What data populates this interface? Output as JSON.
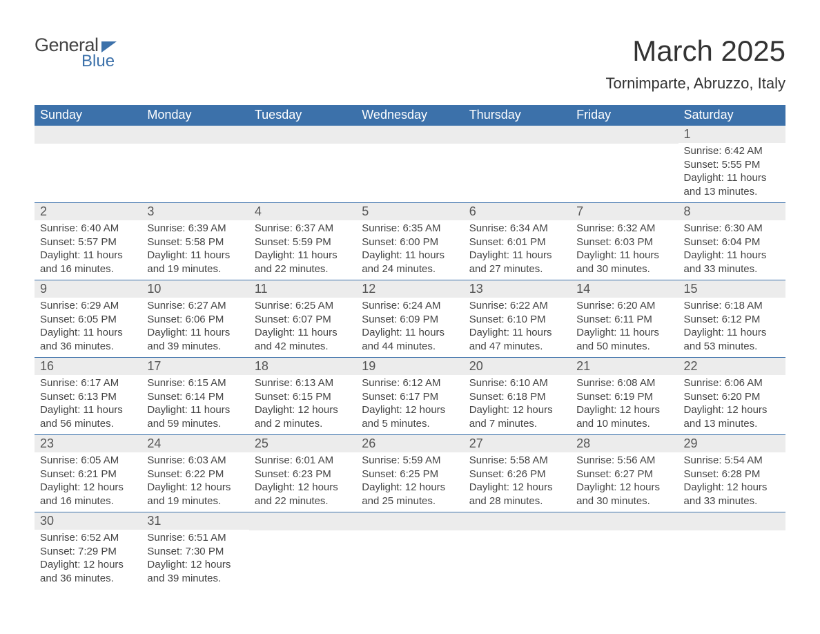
{
  "brand": {
    "word1": "General",
    "word2": "Blue"
  },
  "title": "March 2025",
  "location": "Tornimparte, Abruzzo, Italy",
  "colors": {
    "header_bg": "#3c71aa",
    "header_text": "#ffffff",
    "daynum_bg": "#ececec",
    "text": "#424242",
    "row_border": "#3c71aa"
  },
  "day_headers": [
    "Sunday",
    "Monday",
    "Tuesday",
    "Wednesday",
    "Thursday",
    "Friday",
    "Saturday"
  ],
  "weeks": [
    [
      null,
      null,
      null,
      null,
      null,
      null,
      {
        "n": "1",
        "sunrise": "Sunrise: 6:42 AM",
        "sunset": "Sunset: 5:55 PM",
        "daylight": "Daylight: 11 hours and 13 minutes."
      }
    ],
    [
      {
        "n": "2",
        "sunrise": "Sunrise: 6:40 AM",
        "sunset": "Sunset: 5:57 PM",
        "daylight": "Daylight: 11 hours and 16 minutes."
      },
      {
        "n": "3",
        "sunrise": "Sunrise: 6:39 AM",
        "sunset": "Sunset: 5:58 PM",
        "daylight": "Daylight: 11 hours and 19 minutes."
      },
      {
        "n": "4",
        "sunrise": "Sunrise: 6:37 AM",
        "sunset": "Sunset: 5:59 PM",
        "daylight": "Daylight: 11 hours and 22 minutes."
      },
      {
        "n": "5",
        "sunrise": "Sunrise: 6:35 AM",
        "sunset": "Sunset: 6:00 PM",
        "daylight": "Daylight: 11 hours and 24 minutes."
      },
      {
        "n": "6",
        "sunrise": "Sunrise: 6:34 AM",
        "sunset": "Sunset: 6:01 PM",
        "daylight": "Daylight: 11 hours and 27 minutes."
      },
      {
        "n": "7",
        "sunrise": "Sunrise: 6:32 AM",
        "sunset": "Sunset: 6:03 PM",
        "daylight": "Daylight: 11 hours and 30 minutes."
      },
      {
        "n": "8",
        "sunrise": "Sunrise: 6:30 AM",
        "sunset": "Sunset: 6:04 PM",
        "daylight": "Daylight: 11 hours and 33 minutes."
      }
    ],
    [
      {
        "n": "9",
        "sunrise": "Sunrise: 6:29 AM",
        "sunset": "Sunset: 6:05 PM",
        "daylight": "Daylight: 11 hours and 36 minutes."
      },
      {
        "n": "10",
        "sunrise": "Sunrise: 6:27 AM",
        "sunset": "Sunset: 6:06 PM",
        "daylight": "Daylight: 11 hours and 39 minutes."
      },
      {
        "n": "11",
        "sunrise": "Sunrise: 6:25 AM",
        "sunset": "Sunset: 6:07 PM",
        "daylight": "Daylight: 11 hours and 42 minutes."
      },
      {
        "n": "12",
        "sunrise": "Sunrise: 6:24 AM",
        "sunset": "Sunset: 6:09 PM",
        "daylight": "Daylight: 11 hours and 44 minutes."
      },
      {
        "n": "13",
        "sunrise": "Sunrise: 6:22 AM",
        "sunset": "Sunset: 6:10 PM",
        "daylight": "Daylight: 11 hours and 47 minutes."
      },
      {
        "n": "14",
        "sunrise": "Sunrise: 6:20 AM",
        "sunset": "Sunset: 6:11 PM",
        "daylight": "Daylight: 11 hours and 50 minutes."
      },
      {
        "n": "15",
        "sunrise": "Sunrise: 6:18 AM",
        "sunset": "Sunset: 6:12 PM",
        "daylight": "Daylight: 11 hours and 53 minutes."
      }
    ],
    [
      {
        "n": "16",
        "sunrise": "Sunrise: 6:17 AM",
        "sunset": "Sunset: 6:13 PM",
        "daylight": "Daylight: 11 hours and 56 minutes."
      },
      {
        "n": "17",
        "sunrise": "Sunrise: 6:15 AM",
        "sunset": "Sunset: 6:14 PM",
        "daylight": "Daylight: 11 hours and 59 minutes."
      },
      {
        "n": "18",
        "sunrise": "Sunrise: 6:13 AM",
        "sunset": "Sunset: 6:15 PM",
        "daylight": "Daylight: 12 hours and 2 minutes."
      },
      {
        "n": "19",
        "sunrise": "Sunrise: 6:12 AM",
        "sunset": "Sunset: 6:17 PM",
        "daylight": "Daylight: 12 hours and 5 minutes."
      },
      {
        "n": "20",
        "sunrise": "Sunrise: 6:10 AM",
        "sunset": "Sunset: 6:18 PM",
        "daylight": "Daylight: 12 hours and 7 minutes."
      },
      {
        "n": "21",
        "sunrise": "Sunrise: 6:08 AM",
        "sunset": "Sunset: 6:19 PM",
        "daylight": "Daylight: 12 hours and 10 minutes."
      },
      {
        "n": "22",
        "sunrise": "Sunrise: 6:06 AM",
        "sunset": "Sunset: 6:20 PM",
        "daylight": "Daylight: 12 hours and 13 minutes."
      }
    ],
    [
      {
        "n": "23",
        "sunrise": "Sunrise: 6:05 AM",
        "sunset": "Sunset: 6:21 PM",
        "daylight": "Daylight: 12 hours and 16 minutes."
      },
      {
        "n": "24",
        "sunrise": "Sunrise: 6:03 AM",
        "sunset": "Sunset: 6:22 PM",
        "daylight": "Daylight: 12 hours and 19 minutes."
      },
      {
        "n": "25",
        "sunrise": "Sunrise: 6:01 AM",
        "sunset": "Sunset: 6:23 PM",
        "daylight": "Daylight: 12 hours and 22 minutes."
      },
      {
        "n": "26",
        "sunrise": "Sunrise: 5:59 AM",
        "sunset": "Sunset: 6:25 PM",
        "daylight": "Daylight: 12 hours and 25 minutes."
      },
      {
        "n": "27",
        "sunrise": "Sunrise: 5:58 AM",
        "sunset": "Sunset: 6:26 PM",
        "daylight": "Daylight: 12 hours and 28 minutes."
      },
      {
        "n": "28",
        "sunrise": "Sunrise: 5:56 AM",
        "sunset": "Sunset: 6:27 PM",
        "daylight": "Daylight: 12 hours and 30 minutes."
      },
      {
        "n": "29",
        "sunrise": "Sunrise: 5:54 AM",
        "sunset": "Sunset: 6:28 PM",
        "daylight": "Daylight: 12 hours and 33 minutes."
      }
    ],
    [
      {
        "n": "30",
        "sunrise": "Sunrise: 6:52 AM",
        "sunset": "Sunset: 7:29 PM",
        "daylight": "Daylight: 12 hours and 36 minutes."
      },
      {
        "n": "31",
        "sunrise": "Sunrise: 6:51 AM",
        "sunset": "Sunset: 7:30 PM",
        "daylight": "Daylight: 12 hours and 39 minutes."
      },
      null,
      null,
      null,
      null,
      null
    ]
  ]
}
